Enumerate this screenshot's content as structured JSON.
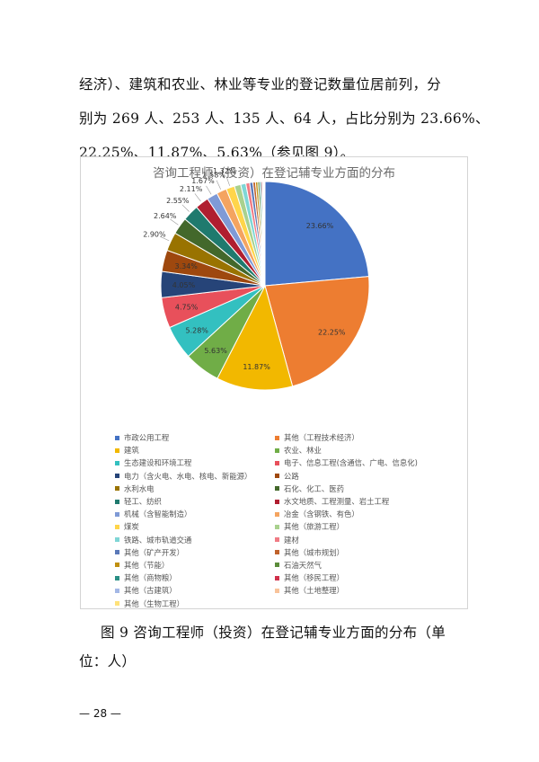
{
  "body_text": {
    "line1": "经济）、建筑和农业、林业等专业的登记数量位居前列，分",
    "line2": "别为 269 人、253 人、135 人、64 人，占比分别为 23.66%、",
    "line3": "22.25%、11.87%、5.63%（参见图 9）。"
  },
  "chart_data": {
    "type": "pie",
    "title": "咨询工程师（投资）在登记辅专业方面的分布",
    "slices": [
      {
        "name": "市政公用工程",
        "value": 23.66,
        "label": "23.66%",
        "color": "#4472c4"
      },
      {
        "name": "其他（工程技术经济）",
        "value": 22.25,
        "label": "22.25%",
        "color": "#ed7d31"
      },
      {
        "name": "建筑",
        "value": 11.87,
        "label": "11.87%",
        "color": "#f2b800"
      },
      {
        "name": "农业、林业",
        "value": 5.63,
        "label": "5.63%",
        "color": "#70ad47"
      },
      {
        "name": "生态建设和环境工程",
        "value": 5.28,
        "label": "5.28%",
        "color": "#33c0c0"
      },
      {
        "name": "电子、信息工程(含通信、广电、信息化)",
        "value": 4.75,
        "label": "4.75%",
        "color": "#e8505b"
      },
      {
        "name": "电力（含火电、水电、核电、新能源）",
        "value": 4.05,
        "label": "4.05%",
        "color": "#264478"
      },
      {
        "name": "公路",
        "value": 3.34,
        "label": "3.34%",
        "color": "#9e480e"
      },
      {
        "name": "水利水电",
        "value": 2.9,
        "label": "2.90%",
        "color": "#997300"
      },
      {
        "name": "石化、化工、医药",
        "value": 2.64,
        "label": "2.64%",
        "color": "#43682b"
      },
      {
        "name": "轻工、纺织",
        "value": 2.55,
        "label": "2.55%",
        "color": "#1f7a6e"
      },
      {
        "name": "水文地质、工程测量、岩土工程",
        "value": 2.11,
        "label": "2.11%",
        "color": "#b01e30"
      },
      {
        "name": "机械（含智能制造）",
        "value": 1.67,
        "label": "1.67%",
        "color": "#7f9ad6"
      },
      {
        "name": "冶金（含钢铁、有色）",
        "value": 1.58,
        "label": "1.58%",
        "color": "#f4a460"
      },
      {
        "name": "煤炭",
        "value": 1.32,
        "label": "1.32%",
        "color": "#ffd54a"
      },
      {
        "name": "其他（旅游工程）",
        "value": 1.0,
        "label": "",
        "color": "#a9d18e"
      },
      {
        "name": "铁路、城市轨道交通",
        "value": 0.8,
        "label": "",
        "color": "#7fd6d6"
      },
      {
        "name": "建材",
        "value": 0.6,
        "label": "",
        "color": "#f07b84"
      },
      {
        "name": "其他（矿产开发）",
        "value": 0.5,
        "label": "",
        "color": "#5a78b8"
      },
      {
        "name": "其他（城市规划）",
        "value": 0.4,
        "label": "",
        "color": "#c0622b"
      },
      {
        "name": "其他（节能）",
        "value": 0.35,
        "label": "",
        "color": "#c09010"
      },
      {
        "name": "石油天然气",
        "value": 0.3,
        "label": "",
        "color": "#5b8c3a"
      },
      {
        "name": "其他（商物粮）",
        "value": 0.25,
        "label": "",
        "color": "#2a8f85"
      },
      {
        "name": "其他（移民工程）",
        "value": 0.2,
        "label": "",
        "color": "#d0304a"
      },
      {
        "name": "其他（古建筑）",
        "value": 0.15,
        "label": "",
        "color": "#a4b8e6"
      },
      {
        "name": "其他（土地整理）",
        "value": 0.12,
        "label": "",
        "color": "#f8c39a"
      },
      {
        "name": "其他（生物工程）",
        "value": 0.1,
        "label": "",
        "color": "#ffe27a"
      }
    ]
  },
  "caption": {
    "line1": "图 9 咨询工程师（投资）在登记辅专业方面的分布（单",
    "line2": "位：人）"
  },
  "page_number": "— 28 —"
}
